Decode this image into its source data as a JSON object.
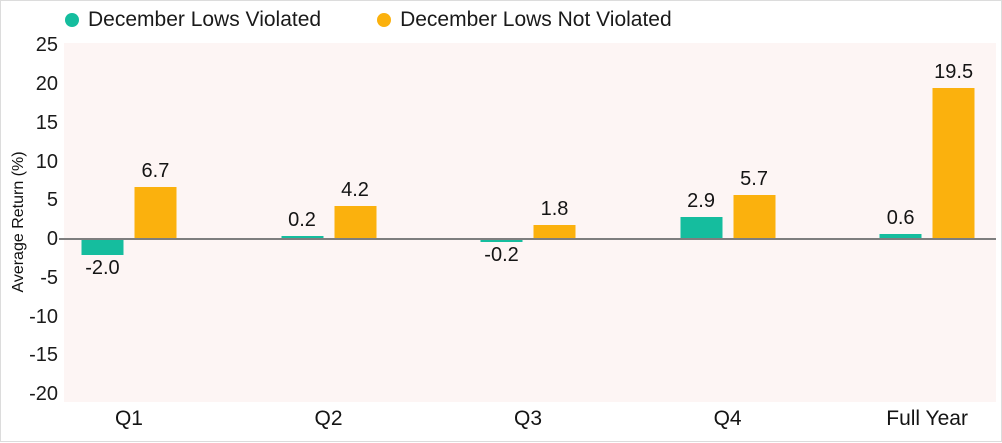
{
  "chart_data": {
    "type": "bar",
    "categories": [
      "Q1",
      "Q2",
      "Q3",
      "Q4",
      "Full Year"
    ],
    "series": [
      {
        "name": "December Lows Violated",
        "color": "#15BD9E",
        "values": [
          -2.0,
          0.2,
          -0.2,
          2.9,
          0.6
        ]
      },
      {
        "name": "December Lows Not Violated",
        "color": "#FBB10D",
        "values": [
          6.7,
          4.2,
          1.8,
          5.7,
          19.5
        ]
      }
    ],
    "title": "",
    "xlabel": "",
    "ylabel": "Average Return (%)",
    "ylim": [
      -20,
      25
    ],
    "yticks": [
      25,
      20,
      15,
      10,
      5,
      0,
      -5,
      -10,
      -15,
      -20
    ],
    "grid": false,
    "legend_position": "top",
    "plot_background": "#FDF5F4",
    "zero_line_color": "#7E7E7E",
    "value_labels_decimals": 1
  }
}
